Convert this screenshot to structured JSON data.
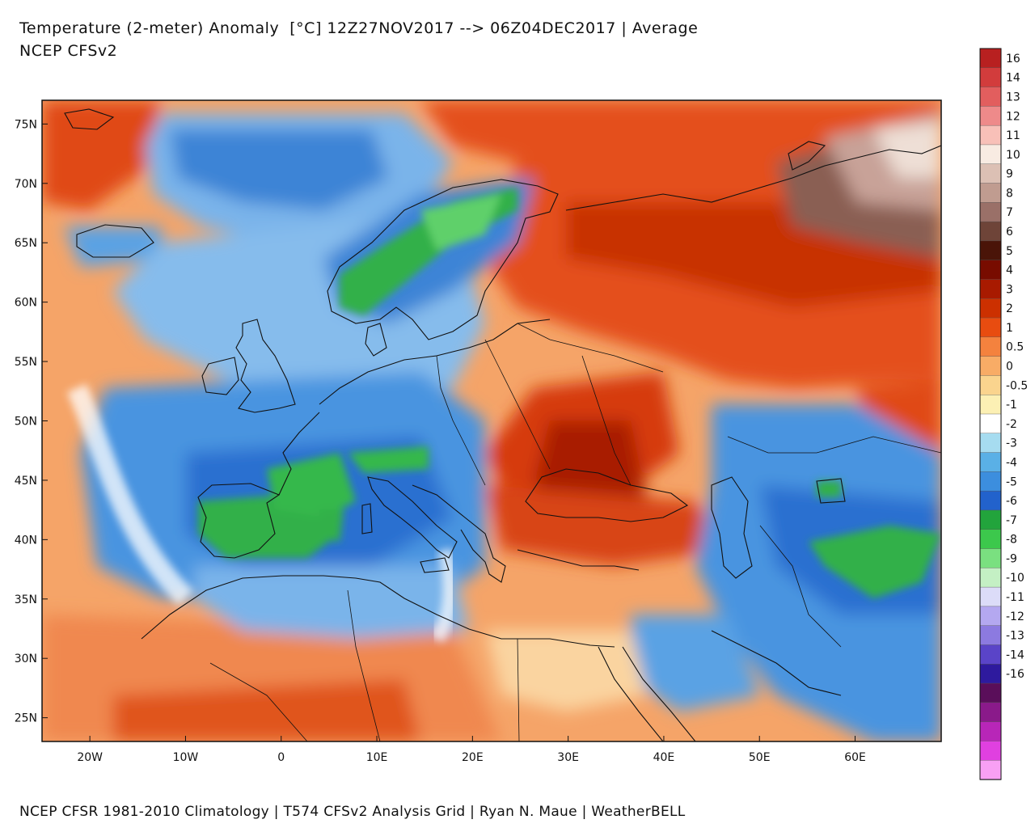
{
  "header": {
    "title": "Temperature (2-meter) Anomaly  [°C] 12Z27NOV2017 --> 06Z04DEC2017 | Average",
    "subtitle": "NCEP CFSv2"
  },
  "footer": {
    "credit": "NCEP CFSR 1981-2010 Climatology | T574 CFSv2 Analysis Grid | Ryan N. Maue | WeatherBELL"
  },
  "map": {
    "region": "Europe, North Africa, Middle East",
    "variable": "2-meter temperature anomaly",
    "units": "°C",
    "lon_range": [
      -25,
      69
    ],
    "lat_range": [
      23,
      77
    ],
    "lon_ticks": [
      "20W",
      "10W",
      "0",
      "10E",
      "20E",
      "30E",
      "40E",
      "50E",
      "60E"
    ],
    "lat_ticks": [
      "75N",
      "70N",
      "65N",
      "60N",
      "55N",
      "50N",
      "45N",
      "40N",
      "35N",
      "30N",
      "25N"
    ]
  },
  "colorbar": {
    "levels": [
      {
        "label": "16",
        "color": "#b82020"
      },
      {
        "label": "14",
        "color": "#d23c3c"
      },
      {
        "label": "13",
        "color": "#e25e5e"
      },
      {
        "label": "12",
        "color": "#ee8a8a"
      },
      {
        "label": "11",
        "color": "#f8c0b8"
      },
      {
        "label": "10",
        "color": "#f8ebe2"
      },
      {
        "label": "9",
        "color": "#dcc0b4"
      },
      {
        "label": "8",
        "color": "#c09c90"
      },
      {
        "label": "7",
        "color": "#9a7068"
      },
      {
        "label": "6",
        "color": "#6e4438"
      },
      {
        "label": "5",
        "color": "#4a1408"
      },
      {
        "label": "4",
        "color": "#780c00"
      },
      {
        "label": "3",
        "color": "#a81a00"
      },
      {
        "label": "2",
        "color": "#cc3000"
      },
      {
        "label": "1",
        "color": "#e84c10"
      },
      {
        "label": "0.5",
        "color": "#f4823e"
      },
      {
        "label": "0",
        "color": "#f8ac66"
      },
      {
        "label": "-0.5",
        "color": "#fad48e"
      },
      {
        "label": "-1",
        "color": "#fcf0b4"
      },
      {
        "label": "-2",
        "color": "#ffffff"
      },
      {
        "label": "-3",
        "color": "#a6dcf0"
      },
      {
        "label": "-4",
        "color": "#5ab0e6"
      },
      {
        "label": "-5",
        "color": "#3c8ede"
      },
      {
        "label": "-6",
        "color": "#2262cc"
      },
      {
        "label": "-7",
        "color": "#22a43c"
      },
      {
        "label": "-8",
        "color": "#3cc84c"
      },
      {
        "label": "-9",
        "color": "#7ae080"
      },
      {
        "label": "-10",
        "color": "#c4f0c4"
      },
      {
        "label": "-11",
        "color": "#dcdcf8"
      },
      {
        "label": "-12",
        "color": "#b4a8f0"
      },
      {
        "label": "-13",
        "color": "#8c7ae0"
      },
      {
        "label": "-14",
        "color": "#5a44c8"
      },
      {
        "label": "-16",
        "color": "#2e1a9e"
      },
      {
        "label": "",
        "color": "#5a0e5a"
      },
      {
        "label": "",
        "color": "#8a1a8a"
      },
      {
        "label": "",
        "color": "#b826b8"
      },
      {
        "label": "",
        "color": "#e040e0"
      },
      {
        "label": "",
        "color": "#f8a0f4"
      }
    ]
  },
  "colors": {
    "ocean_base": "#f6a46a",
    "warm": "#e0441a",
    "deep_warm": "#b02000",
    "cool": "#6aa8e8",
    "cold": "#2a70d0",
    "very_cold": "#36b04a",
    "coast": "#111111"
  }
}
